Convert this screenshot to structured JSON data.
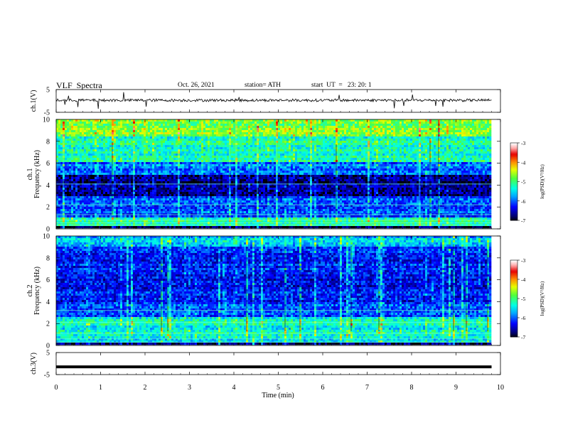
{
  "header": {
    "title": "VLF  Spectra",
    "date": "Oct. 26, 2021",
    "station": "station= ATH",
    "start": "start  UT  =   23: 20: 1"
  },
  "chart_data": [
    {
      "type": "line",
      "panel": "ch1-waveform",
      "ylabel": "ch.1(V)",
      "ylim": [
        -5,
        5
      ],
      "yticks": [
        "5",
        "-5"
      ],
      "x_range_min": [
        0,
        9.8
      ],
      "baseline_v": 0.3,
      "noise_amplitude_v": 1.2
    },
    {
      "type": "heatmap",
      "panel": "ch1-spectrogram",
      "ylabel": "ch.1\nFrequency  (kHz)",
      "ylim_khz": [
        0,
        10
      ],
      "yticks": [
        "0",
        "2",
        "4",
        "6",
        "8",
        "10"
      ],
      "x_range_min": [
        0,
        9.8
      ],
      "colorbar": {
        "label": "log(PSD)(V²/Hz)",
        "ticks": [
          "-3",
          "-4",
          "-5",
          "-6",
          "-7"
        ],
        "range": [
          -7,
          -3
        ]
      },
      "bands": [
        {
          "f_khz": [
            8.5,
            10
          ],
          "log_psd": -4.7
        },
        {
          "f_khz": [
            6.0,
            8.5
          ],
          "log_psd": -5.2
        },
        {
          "f_khz": [
            4.9,
            6.0
          ],
          "log_psd": -5.9
        },
        {
          "f_khz": [
            3.0,
            4.9
          ],
          "log_psd": -6.7
        },
        {
          "f_khz": [
            2.2,
            3.0
          ],
          "log_psd": -6.1
        },
        {
          "f_khz": [
            1.0,
            2.2
          ],
          "log_psd": -6.0
        },
        {
          "f_khz": [
            0.2,
            1.0
          ],
          "log_psd": -5.2
        },
        {
          "f_khz": [
            0,
            0.2
          ],
          "log_psd": -6.8
        }
      ]
    },
    {
      "type": "heatmap",
      "panel": "ch2-spectrogram",
      "ylabel": "ch.2\nFrequency  (kHz)",
      "ylim_khz": [
        0,
        10
      ],
      "yticks": [
        "0",
        "2",
        "4",
        "6",
        "8",
        "10"
      ],
      "x_range_min": [
        0,
        9.8
      ],
      "colorbar": {
        "label": "log(PSD)(V²/Hz)",
        "ticks": [
          "-3",
          "-4",
          "-5",
          "-6",
          "-7"
        ],
        "range": [
          -7,
          -3
        ]
      },
      "bands": [
        {
          "f_khz": [
            9.0,
            10
          ],
          "log_psd": -5.6
        },
        {
          "f_khz": [
            6.5,
            9.0
          ],
          "log_psd": -6.2
        },
        {
          "f_khz": [
            4.0,
            6.5
          ],
          "log_psd": -6.3
        },
        {
          "f_khz": [
            2.5,
            4.0
          ],
          "log_psd": -6.0
        },
        {
          "f_khz": [
            1.0,
            2.5
          ],
          "log_psd": -5.3
        },
        {
          "f_khz": [
            0.2,
            1.0
          ],
          "log_psd": -5.4
        },
        {
          "f_khz": [
            0,
            0.2
          ],
          "log_psd": -6.8
        }
      ]
    },
    {
      "type": "line",
      "panel": "ch3-waveform",
      "ylabel": "ch.3(V)",
      "ylim": [
        -5,
        5
      ],
      "yticks": [
        "5",
        "-5"
      ],
      "x_range_min": [
        0,
        9.8
      ],
      "baseline_v": -1.5
    }
  ],
  "x_axis": {
    "label": "Time  (min)",
    "ticks": [
      "0",
      "1",
      "2",
      "3",
      "4",
      "5",
      "6",
      "7",
      "8",
      "9",
      "10"
    ],
    "xlim": [
      0,
      10
    ]
  }
}
